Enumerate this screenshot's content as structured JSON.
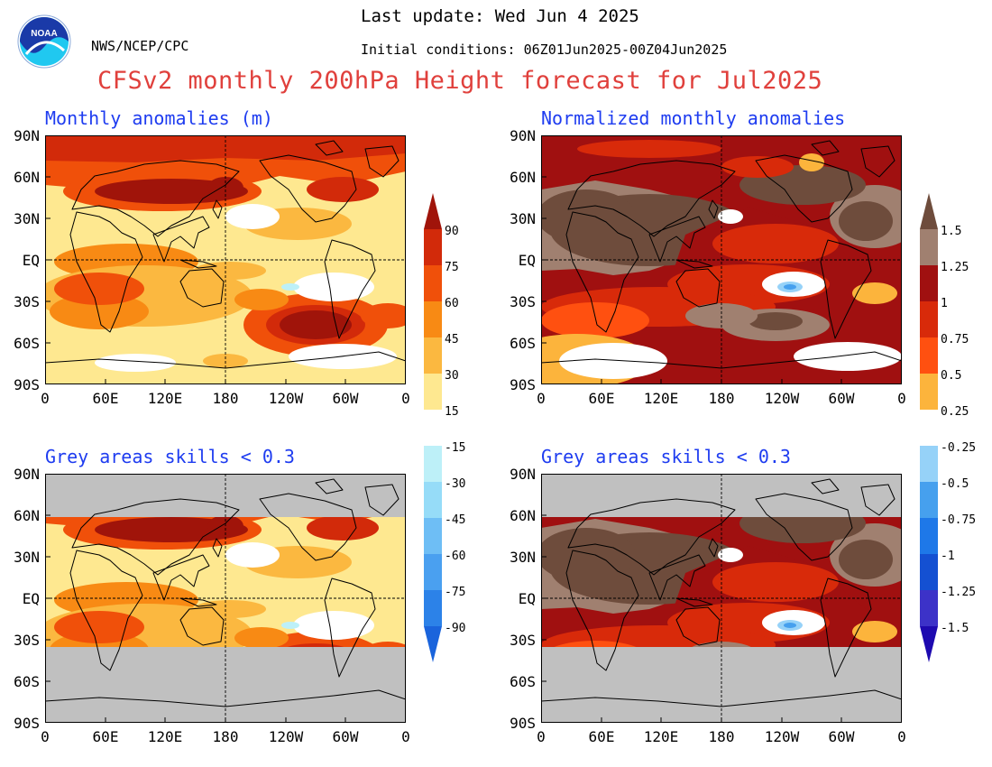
{
  "header": {
    "last_update": "Last update: Wed Jun 4 2025",
    "initial_conditions": "Initial conditions: 06Z01Jun2025-00Z04Jun2025",
    "org": "NWS/NCEP/CPC",
    "logo_text": "NOAA",
    "title": "CFSv2 monthly 200hPa Height forecast for Jul2025"
  },
  "panels": [
    {
      "title": "Monthly anomalies (m)",
      "scheme": "abs",
      "masked": false
    },
    {
      "title": "Normalized monthly anomalies",
      "scheme": "norm",
      "masked": false
    },
    {
      "title": "Grey areas skills < 0.3",
      "scheme": "abs",
      "masked": true
    },
    {
      "title": "Grey areas skills < 0.3",
      "scheme": "norm",
      "masked": true
    }
  ],
  "lat_labels": [
    "90N",
    "60N",
    "30N",
    "EQ",
    "30S",
    "60S",
    "90S"
  ],
  "lon_labels": [
    "0",
    "60E",
    "120E",
    "180",
    "120W",
    "60W",
    "0"
  ],
  "colorbar_abs": {
    "labels": [
      "90",
      "75",
      "60",
      "45",
      "30",
      "15",
      "-15",
      "-30",
      "-45",
      "-60",
      "-75",
      "-90"
    ],
    "colors_pos": [
      "#a0140a",
      "#d22a0a",
      "#f0500a",
      "#f88a14",
      "#fbb840",
      "#fee890"
    ],
    "colors_neg": [
      "#bdf0f8",
      "#96dcf8",
      "#6ebef5",
      "#4aa0f0",
      "#2c82e8",
      "#1a64dc"
    ]
  },
  "colorbar_norm": {
    "labels": [
      "1.5",
      "1.25",
      "1",
      "0.75",
      "0.5",
      "0.25",
      "-0.25",
      "-0.5",
      "-0.75",
      "-1",
      "-1.25",
      "-1.5"
    ],
    "colors_pos": [
      "#6e4c3c",
      "#a08070",
      "#a01010",
      "#d82a0a",
      "#ff5010",
      "#fcb43c"
    ],
    "colors_neg": [
      "#96d2f8",
      "#46a0ee",
      "#1e78e8",
      "#1450d2",
      "#3c32c8",
      "#1e0ab0"
    ]
  },
  "colors": {
    "title_red": "#e0403c",
    "panel_title_blue": "#1e3cf0",
    "mask_grey": "#c0c0c0",
    "noaa_blue": "#1a3aa8",
    "noaa_cyan": "#20c8f0"
  }
}
